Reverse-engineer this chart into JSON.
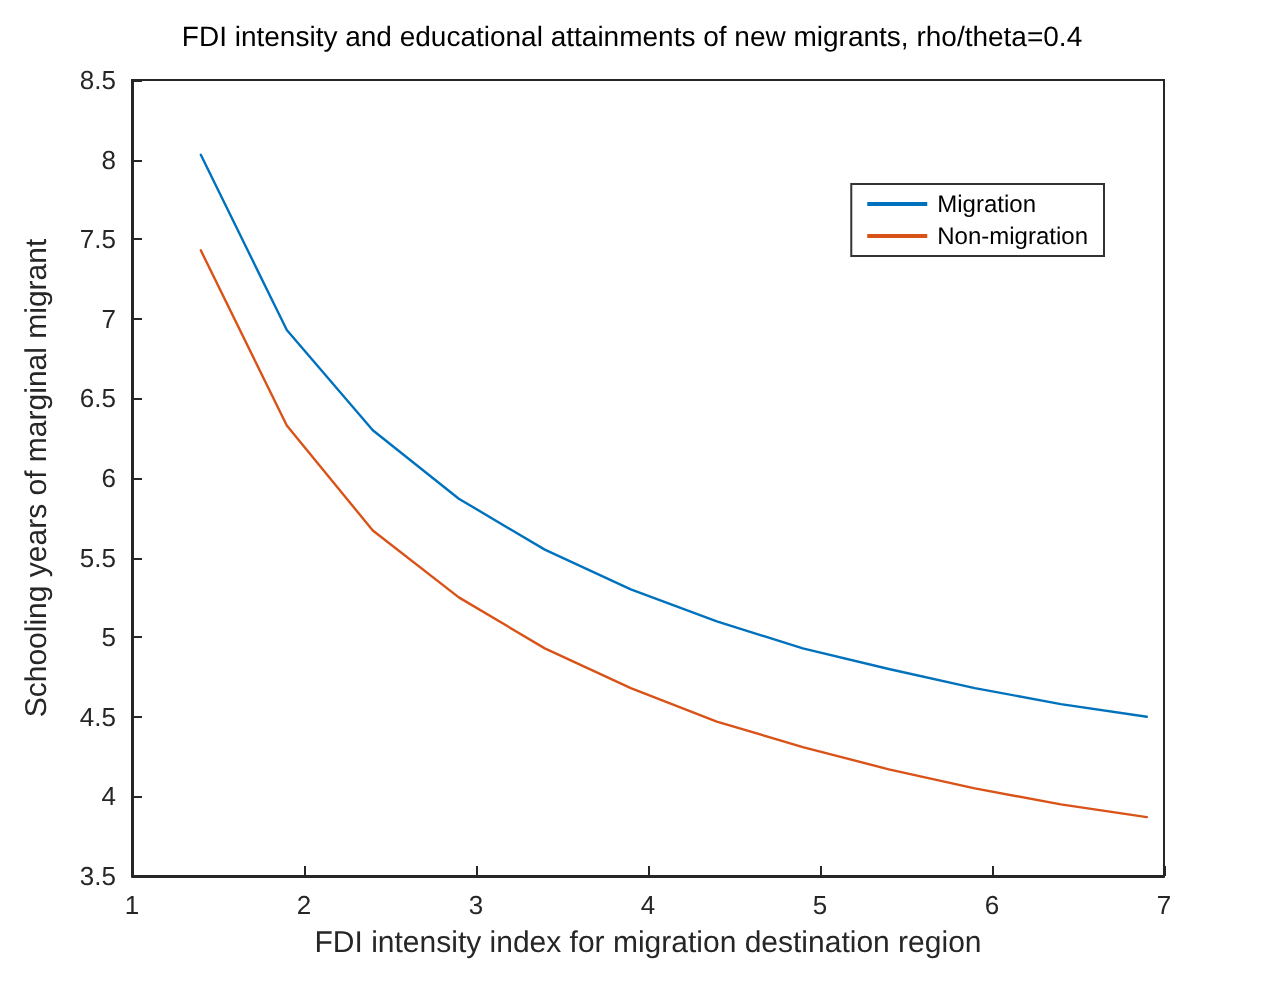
{
  "chart_data": {
    "type": "line",
    "title": "FDI intensity and educational attainments of new migrants, rho/theta=0.4",
    "xlabel": "FDI intensity index for migration destination region",
    "ylabel": "Schooling years of marginal migrant",
    "x": [
      1.4,
      1.9,
      2.4,
      2.9,
      3.4,
      3.9,
      4.4,
      4.9,
      5.4,
      5.9,
      6.4,
      6.9
    ],
    "series": [
      {
        "name": "Migration",
        "color": "#0072bd",
        "values": [
          8.03,
          6.93,
          6.3,
          5.87,
          5.55,
          5.3,
          5.1,
          4.93,
          4.8,
          4.68,
          4.58,
          4.5
        ]
      },
      {
        "name": "Non-migration",
        "color": "#d95319",
        "values": [
          7.43,
          6.33,
          5.67,
          5.25,
          4.93,
          4.68,
          4.47,
          4.31,
          4.17,
          4.05,
          3.95,
          3.87
        ]
      }
    ],
    "xlim": [
      1,
      7
    ],
    "xticks": [
      1,
      2,
      3,
      4,
      5,
      6,
      7
    ],
    "ylim": [
      3.5,
      8.5
    ],
    "yticks": [
      3.5,
      4,
      4.5,
      5,
      5.5,
      6,
      6.5,
      7,
      7.5,
      8,
      8.5
    ],
    "grid": false,
    "legend": "top right",
    "marker": "none",
    "line_style": "solid"
  }
}
